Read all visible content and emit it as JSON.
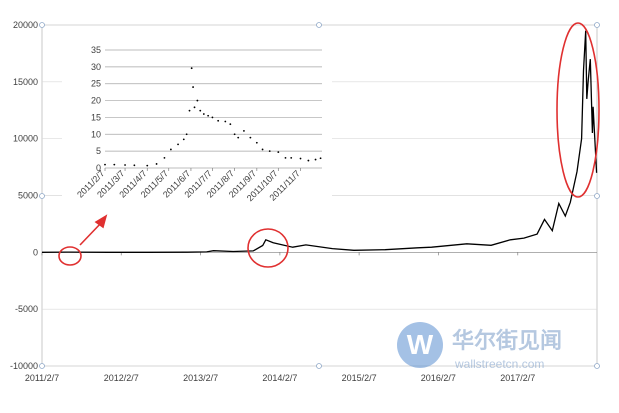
{
  "chart_data": [
    {
      "type": "line",
      "color": "#000000",
      "grid": true,
      "x": [
        "2011/2/7",
        "2011/6/7",
        "2011/12/7",
        "2012/6/7",
        "2012/12/7",
        "2013/3/7",
        "2013/4/7",
        "2013/7/7",
        "2013/10/7",
        "2013/11/20",
        "2013/12/4",
        "2014/1/7",
        "2014/4/7",
        "2014/6/7",
        "2014/10/7",
        "2015/1/14",
        "2015/6/7",
        "2015/11/4",
        "2016/1/7",
        "2016/6/17",
        "2016/10/7",
        "2017/1/4",
        "2017/3/7",
        "2017/5/7",
        "2017/6/10",
        "2017/7/16",
        "2017/8/15",
        "2017/9/14",
        "2017/10/7",
        "2017/11/7",
        "2017/11/28",
        "2017/12/7",
        "2017/12/17",
        "2017/12/22",
        "2017/12/28",
        "2018/1/7",
        "2018/1/17",
        "2018/1/20",
        "2018/2/5"
      ],
      "values": [
        1,
        20,
        3,
        6,
        13,
        40,
        140,
        70,
        130,
        600,
        1100,
        850,
        450,
        650,
        330,
        180,
        230,
        400,
        450,
        750,
        620,
        1100,
        1250,
        1600,
        2900,
        1900,
        4300,
        3200,
        4400,
        7100,
        10000,
        16000,
        19500,
        13500,
        15000,
        17000,
        10500,
        12800,
        7000
      ],
      "xlim": [
        "2011/2/7",
        "2018/2/7"
      ],
      "xticks": [
        "2011/2/7",
        "2012/2/7",
        "2013/2/7",
        "2014/2/7",
        "2015/2/7",
        "2016/2/7",
        "2017/2/7"
      ],
      "ylim": [
        -10000,
        20000
      ],
      "yticks": [
        -10000,
        -5000,
        0,
        5000,
        10000,
        15000,
        20000
      ]
    },
    {
      "type": "scatter",
      "color": "#000000",
      "grid": true,
      "x": [
        "2011/2/7",
        "2011/2/20",
        "2011/3/7",
        "2011/3/20",
        "2011/4/7",
        "2011/4/20",
        "2011/5/1",
        "2011/5/10",
        "2011/5/20",
        "2011/5/28",
        "2011/6/1",
        "2011/6/5",
        "2011/6/8",
        "2011/6/10",
        "2011/6/12",
        "2011/6/16",
        "2011/6/20",
        "2011/6/25",
        "2011/7/1",
        "2011/7/7",
        "2011/7/15",
        "2011/7/25",
        "2011/8/1",
        "2011/8/7",
        "2011/8/12",
        "2011/8/20",
        "2011/8/29",
        "2011/9/7",
        "2011/9/15",
        "2011/9/25",
        "2011/10/7",
        "2011/10/17",
        "2011/10/25",
        "2011/11/7",
        "2011/11/18",
        "2011/11/28",
        "2011/12/5"
      ],
      "values": [
        1,
        1,
        0.9,
        0.8,
        0.7,
        1.2,
        3,
        5.5,
        7,
        8.5,
        10,
        17,
        29.6,
        24,
        18,
        20,
        17,
        16,
        15.5,
        15,
        14,
        13.8,
        13,
        10,
        9,
        11,
        9,
        7.5,
        5.5,
        5,
        4.7,
        3,
        3,
        2.8,
        2.2,
        2.5,
        2.9
      ],
      "xlim": [
        "2011/2/7",
        "2011/12/7"
      ],
      "xticks": [
        "2011/2/7",
        "2011/3/7",
        "2011/4/7",
        "2011/5/7",
        "2011/6/7",
        "2011/7/7",
        "2011/8/7",
        "2011/9/7",
        "2011/10/7",
        "2011/11/7"
      ],
      "ylim": [
        0,
        35
      ],
      "yticks": [
        0,
        5,
        10,
        15,
        20,
        25,
        30,
        35
      ]
    }
  ],
  "watermark": {
    "title": "华尔街见闻",
    "url": "wallstreetcn.com"
  }
}
